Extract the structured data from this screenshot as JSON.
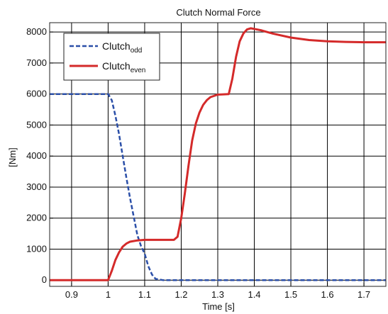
{
  "chart_data": {
    "type": "line",
    "title": "Clutch Normal Force",
    "xlabel": "Time [s]",
    "ylabel": "[Nm]",
    "xlim": [
      0.84,
      1.76
    ],
    "ylim": [
      -200,
      8300
    ],
    "x_ticks": [
      0.9,
      1.0,
      1.1,
      1.2,
      1.3,
      1.4,
      1.5,
      1.6,
      1.7
    ],
    "x_tick_labels": [
      "0.9",
      "1",
      "1.1",
      "1.2",
      "1.3",
      "1.4",
      "1.5",
      "1.6",
      "1.7"
    ],
    "y_ticks": [
      0,
      1000,
      2000,
      3000,
      4000,
      5000,
      6000,
      7000,
      8000
    ],
    "y_tick_labels": [
      "0",
      "1000",
      "2000",
      "3000",
      "4000",
      "5000",
      "6000",
      "7000",
      "8000"
    ],
    "grid": true,
    "legend_position": "top-left",
    "series": [
      {
        "name": "Clutch",
        "name_sub": "odd",
        "color": "#2b4fa8",
        "style": "dashed",
        "x": [
          0.84,
          1.0,
          1.01,
          1.02,
          1.03,
          1.04,
          1.05,
          1.06,
          1.07,
          1.08,
          1.09,
          1.1,
          1.11,
          1.12,
          1.13,
          1.15,
          1.2,
          1.3,
          1.4,
          1.5,
          1.6,
          1.76
        ],
        "y": [
          6000,
          6000,
          5800,
          5300,
          4700,
          4000,
          3300,
          2650,
          2050,
          1450,
          1100,
          850,
          450,
          180,
          40,
          0,
          0,
          0,
          0,
          0,
          0,
          0
        ]
      },
      {
        "name": "Clutch",
        "name_sub": "even",
        "color": "#d42a2a",
        "style": "solid",
        "x": [
          0.84,
          1.0,
          1.01,
          1.02,
          1.03,
          1.04,
          1.05,
          1.06,
          1.08,
          1.1,
          1.15,
          1.18,
          1.19,
          1.2,
          1.21,
          1.22,
          1.23,
          1.24,
          1.25,
          1.26,
          1.27,
          1.28,
          1.3,
          1.33,
          1.34,
          1.35,
          1.36,
          1.37,
          1.38,
          1.39,
          1.4,
          1.42,
          1.45,
          1.5,
          1.55,
          1.6,
          1.65,
          1.7,
          1.76
        ],
        "y": [
          0,
          0,
          300,
          650,
          900,
          1080,
          1180,
          1240,
          1280,
          1300,
          1300,
          1300,
          1400,
          2000,
          2800,
          3700,
          4500,
          5050,
          5400,
          5650,
          5800,
          5900,
          5980,
          6000,
          6500,
          7200,
          7700,
          7950,
          8080,
          8120,
          8100,
          8050,
          7950,
          7820,
          7740,
          7700,
          7680,
          7670,
          7670
        ]
      }
    ]
  }
}
